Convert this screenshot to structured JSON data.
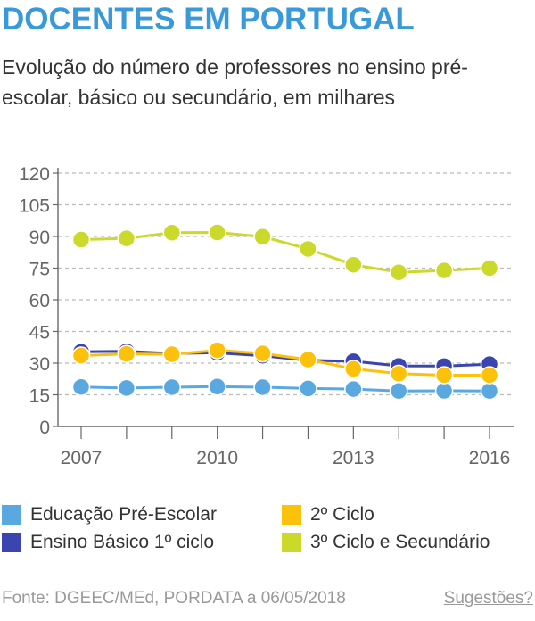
{
  "header": {
    "title": "DOCENTES EM PORTUGAL",
    "subtitle": "Evolução do número de professores no ensino pré-escolar, básico ou secundário, em milhares"
  },
  "chart_data": {
    "type": "line",
    "x": [
      2007,
      2008,
      2009,
      2010,
      2011,
      2012,
      2013,
      2014,
      2015,
      2016
    ],
    "x_tick_labels": [
      "2007",
      "2010",
      "2013",
      "2016"
    ],
    "y_ticks": [
      0,
      15,
      30,
      45,
      60,
      75,
      90,
      105,
      120
    ],
    "ylim": [
      0,
      120
    ],
    "grid": "horizontal dashed",
    "legend_placement": "bottom",
    "series": [
      {
        "name": "Educação Pré-Escolar",
        "color": "#5aa8e0",
        "values": [
          18.7,
          18.2,
          18.6,
          18.9,
          18.6,
          18.0,
          17.7,
          16.8,
          16.9,
          16.8
        ]
      },
      {
        "name": "Ensino Básico 1º ciclo",
        "color": "#3a45b0",
        "values": [
          35.4,
          35.6,
          34.6,
          34.9,
          33.5,
          31.3,
          30.9,
          28.7,
          28.6,
          29.5
        ]
      },
      {
        "name": "2º Ciclo",
        "color": "#fcc10a",
        "values": [
          33.6,
          34.4,
          34.2,
          36.1,
          34.6,
          31.7,
          27.3,
          25.0,
          24.3,
          24.3
        ]
      },
      {
        "name": "3º Ciclo e Secundário",
        "color": "#cbd92a",
        "values": [
          88.5,
          89.1,
          91.8,
          91.9,
          89.9,
          84.1,
          76.6,
          73.0,
          73.9,
          75.0
        ]
      }
    ]
  },
  "footer": {
    "source": "Fonte: DGEEC/MEd, PORDATA a 06/05/2018",
    "suggestions": "Sugestões?"
  }
}
